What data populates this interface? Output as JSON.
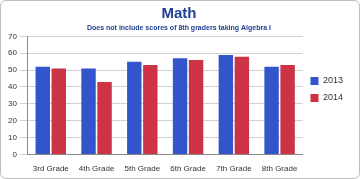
{
  "chart_data": {
    "type": "bar",
    "title": "Math",
    "subtitle": "Does not include scores of 8th graders taking Algebra I",
    "categories": [
      "3rd Grade",
      "4th Grade",
      "5th Grade",
      "6th Grade",
      "7th Grade",
      "8th Grade"
    ],
    "series": [
      {
        "name": "2013",
        "color": "#3355cc",
        "values": [
          52,
          51,
          55,
          57,
          59,
          52
        ]
      },
      {
        "name": "2014",
        "color": "#cc3344",
        "values": [
          51,
          43,
          53,
          56,
          58,
          53
        ]
      }
    ],
    "ylim": [
      0,
      70
    ],
    "yticks": [
      0,
      10,
      20,
      30,
      40,
      50,
      60,
      70
    ],
    "grid": true,
    "legend": "right"
  }
}
